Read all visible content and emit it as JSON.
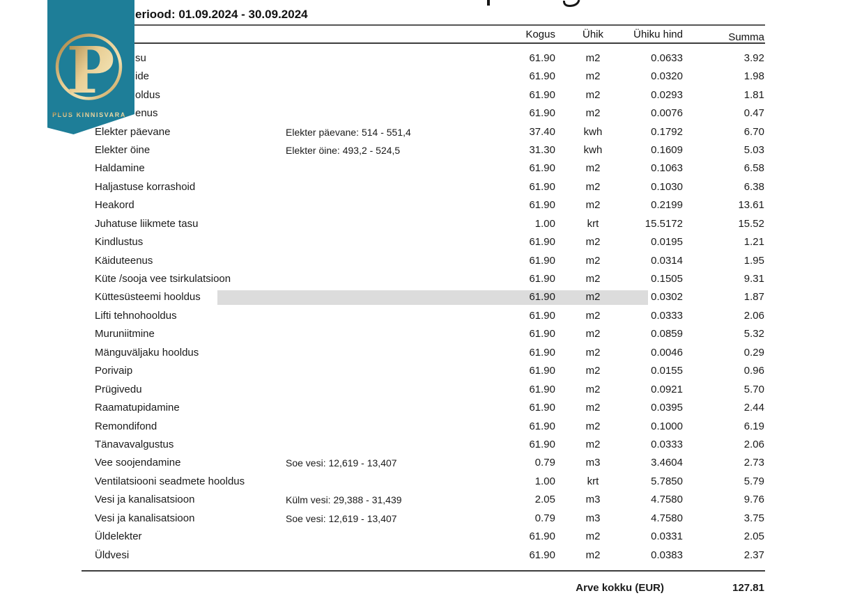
{
  "header": {
    "period": "eriood: 01.09.2024 - 30.09.2024"
  },
  "logo": {
    "monogram": "P",
    "brand": "PLUS KINNISVARA",
    "colors": {
      "ribbon_teal": "#1e7e98",
      "gold": "#d9b473",
      "gold_dark": "#a07c3c",
      "gold_light": "#f0dfae"
    }
  },
  "table": {
    "columns": [
      "Kogus",
      "Ühik",
      "Ühiku hind",
      "Summa"
    ],
    "rows": [
      {
        "name": "su",
        "clipped": true,
        "note": "",
        "qty": "61.90",
        "unit": "m2",
        "price": "0.0633",
        "sum": "3.92"
      },
      {
        "name": "ide",
        "clipped": true,
        "note": "",
        "qty": "61.90",
        "unit": "m2",
        "price": "0.0320",
        "sum": "1.98"
      },
      {
        "name": "oldus",
        "clipped": true,
        "note": "",
        "qty": "61.90",
        "unit": "m2",
        "price": "0.0293",
        "sum": "1.81"
      },
      {
        "name": "enus",
        "clipped": true,
        "note": "",
        "qty": "61.90",
        "unit": "m2",
        "price": "0.0076",
        "sum": "0.47"
      },
      {
        "name": "Elekter päevane",
        "note": "Elekter päevane: 514 - 551,4",
        "qty": "37.40",
        "unit": "kwh",
        "price": "0.1792",
        "sum": "6.70"
      },
      {
        "name": "Elekter öine",
        "note": "Elekter öine: 493,2 - 524,5",
        "qty": "31.30",
        "unit": "kwh",
        "price": "0.1609",
        "sum": "5.03"
      },
      {
        "name": "Haldamine",
        "note": "",
        "qty": "61.90",
        "unit": "m2",
        "price": "0.1063",
        "sum": "6.58"
      },
      {
        "name": "Haljastuse korrashoid",
        "note": "",
        "qty": "61.90",
        "unit": "m2",
        "price": "0.1030",
        "sum": "6.38"
      },
      {
        "name": "Heakord",
        "note": "",
        "qty": "61.90",
        "unit": "m2",
        "price": "0.2199",
        "sum": "13.61"
      },
      {
        "name": "Juhatuse liikmete tasu",
        "note": "",
        "qty": "1.00",
        "unit": "krt",
        "price": "15.5172",
        "sum": "15.52"
      },
      {
        "name": "Kindlustus",
        "note": "",
        "qty": "61.90",
        "unit": "m2",
        "price": "0.0195",
        "sum": "1.21"
      },
      {
        "name": "Käiduteenus",
        "note": "",
        "qty": "61.90",
        "unit": "m2",
        "price": "0.0314",
        "sum": "1.95"
      },
      {
        "name": "Küte /sooja vee tsirkulatsioon",
        "note": "",
        "qty": "61.90",
        "unit": "m2",
        "price": "0.1505",
        "sum": "9.31"
      },
      {
        "name": "Küttesüsteemi hooldus",
        "note": "",
        "qty": "61.90",
        "unit": "m2",
        "price": "0.0302",
        "sum": "1.87",
        "highlight": true
      },
      {
        "name": "Lifti tehnohooldus",
        "note": "",
        "qty": "61.90",
        "unit": "m2",
        "price": "0.0333",
        "sum": "2.06"
      },
      {
        "name": "Muruniitmine",
        "note": "",
        "qty": "61.90",
        "unit": "m2",
        "price": "0.0859",
        "sum": "5.32"
      },
      {
        "name": "Mänguväljaku hooldus",
        "note": "",
        "qty": "61.90",
        "unit": "m2",
        "price": "0.0046",
        "sum": "0.29"
      },
      {
        "name": "Porivaip",
        "note": "",
        "qty": "61.90",
        "unit": "m2",
        "price": "0.0155",
        "sum": "0.96"
      },
      {
        "name": "Prügivedu",
        "note": "",
        "qty": "61.90",
        "unit": "m2",
        "price": "0.0921",
        "sum": "5.70"
      },
      {
        "name": "Raamatupidamine",
        "note": "",
        "qty": "61.90",
        "unit": "m2",
        "price": "0.0395",
        "sum": "2.44"
      },
      {
        "name": "Remondifond",
        "note": "",
        "qty": "61.90",
        "unit": "m2",
        "price": "0.1000",
        "sum": "6.19"
      },
      {
        "name": "Tänavavalgustus",
        "note": "",
        "qty": "61.90",
        "unit": "m2",
        "price": "0.0333",
        "sum": "2.06"
      },
      {
        "name": "Vee soojendamine",
        "note": "Soe vesi: 12,619 - 13,407",
        "qty": "0.79",
        "unit": "m3",
        "price": "3.4604",
        "sum": "2.73"
      },
      {
        "name": "Ventilatsiooni seadmete hooldus",
        "note": "",
        "qty": "1.00",
        "unit": "krt",
        "price": "5.7850",
        "sum": "5.79"
      },
      {
        "name": "Vesi ja kanalisatsioon",
        "note": "Külm vesi: 29,388 - 31,439",
        "qty": "2.05",
        "unit": "m3",
        "price": "4.7580",
        "sum": "9.76"
      },
      {
        "name": "Vesi ja kanalisatsioon",
        "note": "Soe vesi: 12,619 - 13,407",
        "qty": "0.79",
        "unit": "m3",
        "price": "4.7580",
        "sum": "3.75"
      },
      {
        "name": "Üldelekter",
        "note": "",
        "qty": "61.90",
        "unit": "m2",
        "price": "0.0331",
        "sum": "2.05"
      },
      {
        "name": "Üldvesi",
        "note": "",
        "qty": "61.90",
        "unit": "m2",
        "price": "0.0383",
        "sum": "2.37"
      }
    ],
    "total_label": "Arve kokku (EUR)",
    "total_value": "127.81"
  }
}
